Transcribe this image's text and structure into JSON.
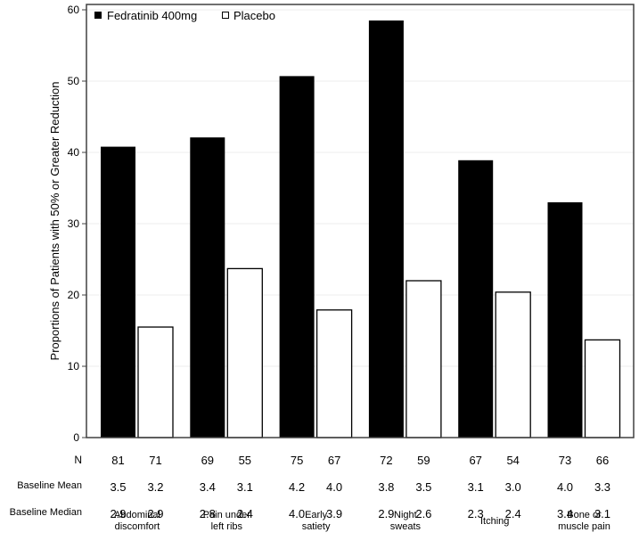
{
  "chart_data": {
    "type": "bar",
    "title": "",
    "xlabel": "",
    "ylabel": "Proportions of Patients with 50% or Greater Reduction",
    "ylim": [
      0,
      60
    ],
    "yticks": [
      0,
      10,
      20,
      30,
      40,
      50,
      60
    ],
    "grid": true,
    "legend_position": "top-left",
    "categories": [
      "Abdominal discomfort",
      "Pain under left ribs",
      "Early satiety",
      "Night sweats",
      "Itching",
      "Bone or muscle pain"
    ],
    "category_lines": [
      [
        "Abdominal",
        "discomfort"
      ],
      [
        "Pain under",
        "left ribs"
      ],
      [
        "Early",
        "satiety"
      ],
      [
        "Night",
        "sweats"
      ],
      [
        "Itching"
      ],
      [
        "Bone or",
        "muscle pain"
      ]
    ],
    "series": [
      {
        "name": "Fedratinib 400mg",
        "color": "#000000",
        "values": [
          40.8,
          42.1,
          50.7,
          58.5,
          38.9,
          33.0
        ],
        "N": [
          "81",
          "69",
          "75",
          "72",
          "67",
          "73"
        ],
        "baseline_mean": [
          "3.5",
          "3.4",
          "4.2",
          "3.8",
          "3.1",
          "4.0"
        ],
        "baseline_median": [
          "2.9",
          "2.8",
          "4.0",
          "2.9",
          "2.3",
          "3.4"
        ]
      },
      {
        "name": "Placebo",
        "color": "#ffffff",
        "values": [
          15.5,
          23.7,
          17.9,
          22.0,
          20.4,
          13.7
        ],
        "N": [
          "71",
          "55",
          "67",
          "59",
          "54",
          "66"
        ],
        "baseline_mean": [
          "3.2",
          "3.1",
          "4.0",
          "3.5",
          "3.0",
          "3.3"
        ],
        "baseline_median": [
          "2.9",
          "2.4",
          "3.9",
          "2.6",
          "2.4",
          "3.1"
        ]
      }
    ],
    "table_row_labels": {
      "n": "N",
      "mean": "Baseline Mean",
      "median": "Baseline Median"
    }
  }
}
